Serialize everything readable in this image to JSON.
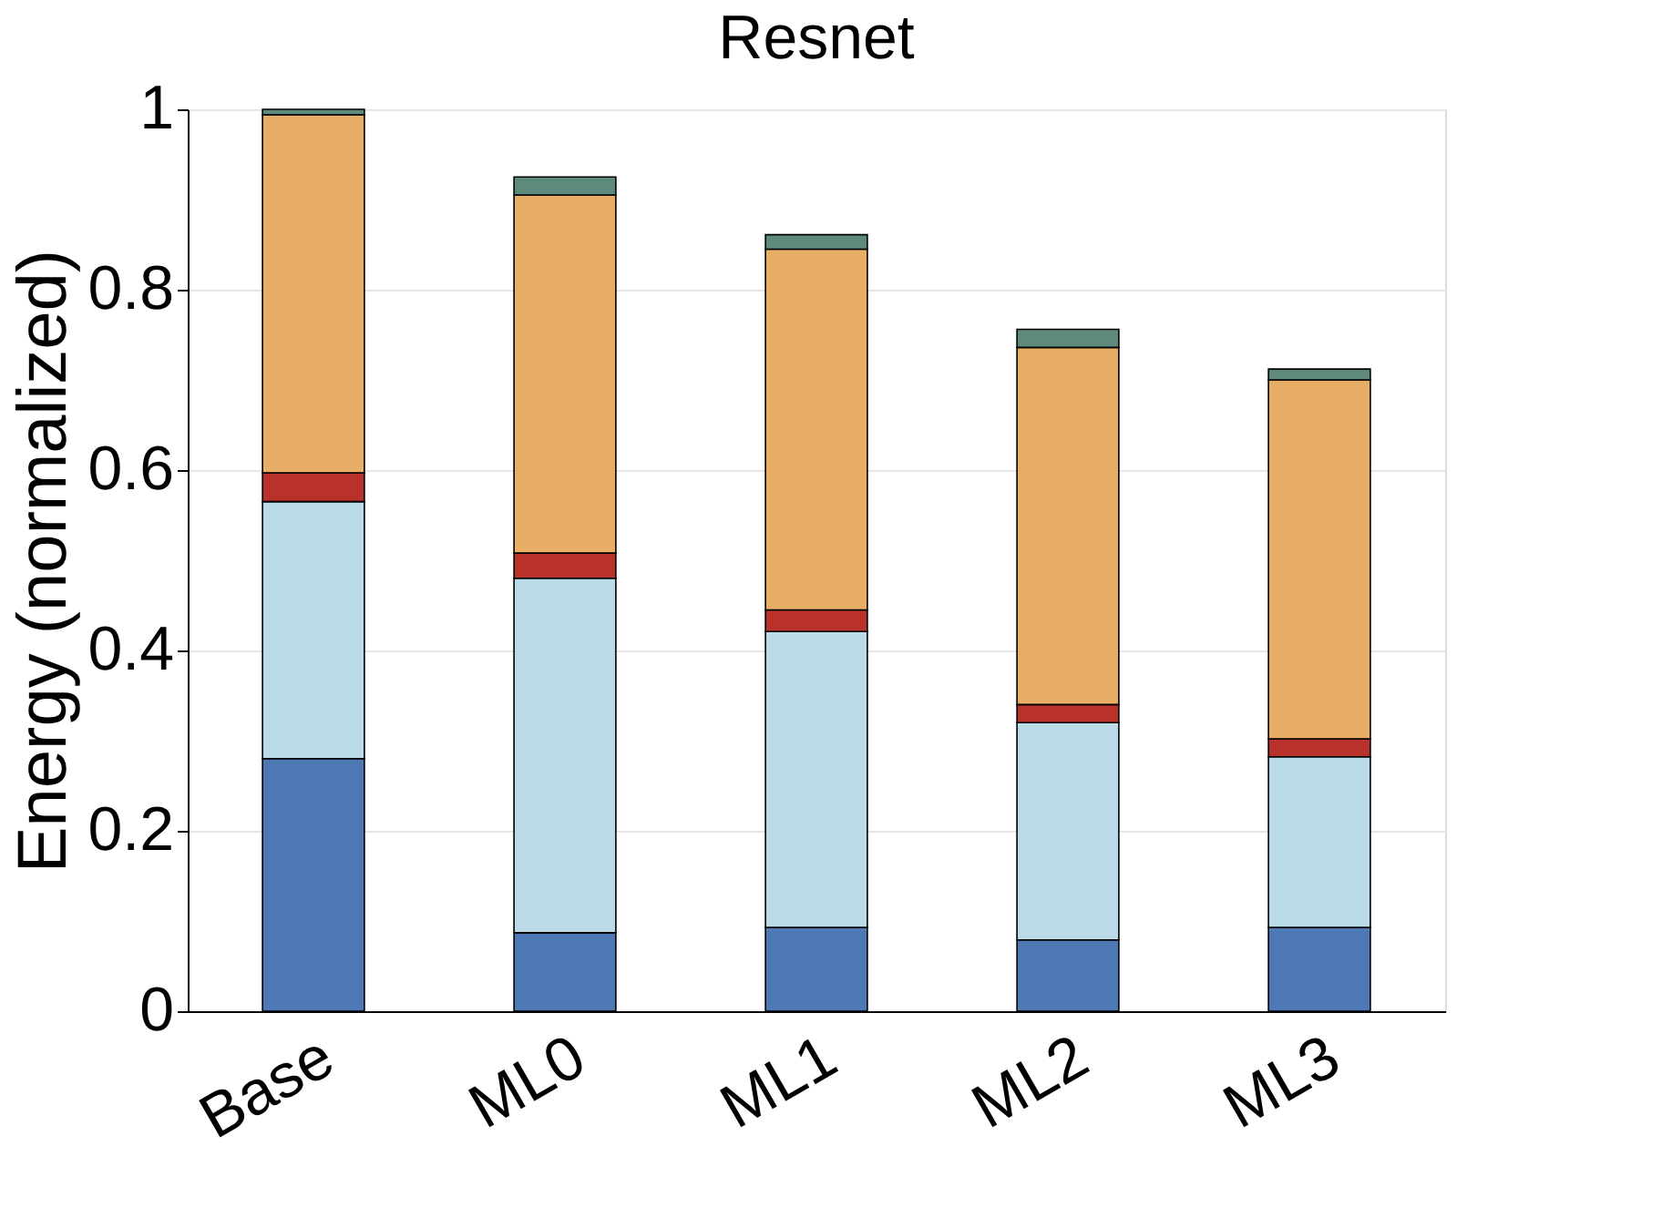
{
  "chart_data": {
    "type": "bar",
    "title": "Resnet",
    "ylabel": "Energy (normalized)",
    "categories": [
      "Base",
      "ML0",
      "ML1",
      "ML2",
      "ML3"
    ],
    "stacked": true,
    "ylim": [
      0,
      1
    ],
    "yticks": [
      0,
      0.2,
      0.4,
      0.6,
      0.8,
      1
    ],
    "grid": "y",
    "legend": false,
    "series": [
      {
        "color": "#4e79b4",
        "values": [
          0.28,
          0.087,
          0.093,
          0.079,
          0.093
        ]
      },
      {
        "color": "#bcdbe8",
        "values": [
          0.285,
          0.393,
          0.328,
          0.241,
          0.189
        ]
      },
      {
        "color": "#b8312a",
        "values": [
          0.032,
          0.028,
          0.024,
          0.02,
          0.02
        ]
      },
      {
        "color": "#e8ae66",
        "values": [
          0.397,
          0.397,
          0.4,
          0.396,
          0.398
        ]
      },
      {
        "color": "#5e8a7d",
        "values": [
          0.006,
          0.02,
          0.016,
          0.02,
          0.012
        ]
      }
    ]
  }
}
